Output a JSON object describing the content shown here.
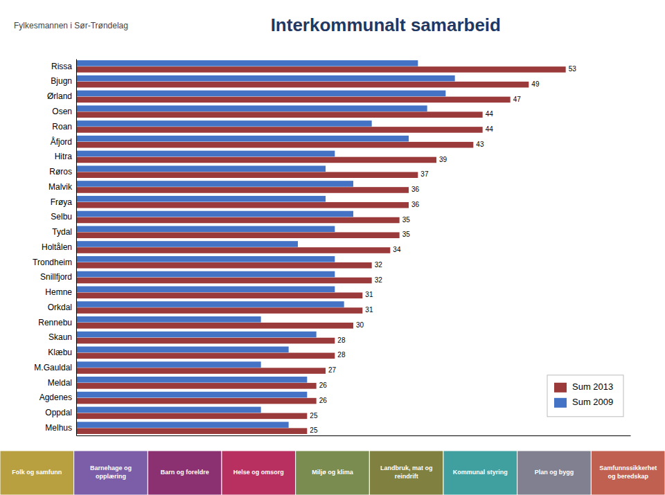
{
  "chart_data": {
    "type": "bar",
    "orientation": "horizontal",
    "title": "Interkommunalt samarbeid",
    "categories": [
      "Rissa",
      "Bjugn",
      "Ørland",
      "Osen",
      "Roan",
      "Åfjord",
      "Hitra",
      "Røros",
      "Malvik",
      "Frøya",
      "Selbu",
      "Tydal",
      "Holtålen",
      "Trondheim",
      "Snillfjord",
      "Hemne",
      "Orkdal",
      "Rennebu",
      "Skaun",
      "Klæbu",
      "M.Gauldal",
      "Meldal",
      "Agdenes",
      "Oppdal",
      "Melhus"
    ],
    "series": [
      {
        "name": "Sum 2013",
        "color": "#9B3A3A",
        "data_labels": true,
        "values": [
          53,
          49,
          47,
          44,
          44,
          43,
          39,
          37,
          36,
          36,
          35,
          35,
          34,
          32,
          32,
          31,
          31,
          30,
          28,
          28,
          27,
          26,
          26,
          25,
          25
        ]
      },
      {
        "name": "Sum 2009",
        "color": "#4472C4",
        "values": [
          37,
          41,
          40,
          38,
          32,
          36,
          28,
          27,
          30,
          27,
          30,
          28,
          24,
          28,
          28,
          28,
          29,
          20,
          26,
          23,
          20,
          25,
          25,
          20,
          23
        ]
      }
    ],
    "xlim": [
      0,
      60
    ],
    "grid": false,
    "legend": "lower right",
    "tick_labels": "y",
    "annotations": [
      {
        "text": "Fylkesmannen i Sør-Trøndelag"
      },
      {
        "text": "Folk og samfunn",
        "color": "#B8A040"
      },
      {
        "text": "Barnehage og\nopplæring",
        "color": "#7B5EA7"
      },
      {
        "text": "Barn og foreldre",
        "color": "#8B3070"
      },
      {
        "text": "Helse og omsorg",
        "color": "#B83060"
      },
      {
        "text": "Miljø og klima",
        "color": "#7B8C50"
      },
      {
        "text": "Landbruk, mat og\nreindrift",
        "color": "#808040"
      },
      {
        "text": "Kommunal styring",
        "color": "#40A0A0"
      },
      {
        "text": "Plan og bygg",
        "color": "#808090"
      },
      {
        "text": "Samfunnssikkerhet\nog beredskap",
        "color": "#C06050"
      }
    ]
  }
}
